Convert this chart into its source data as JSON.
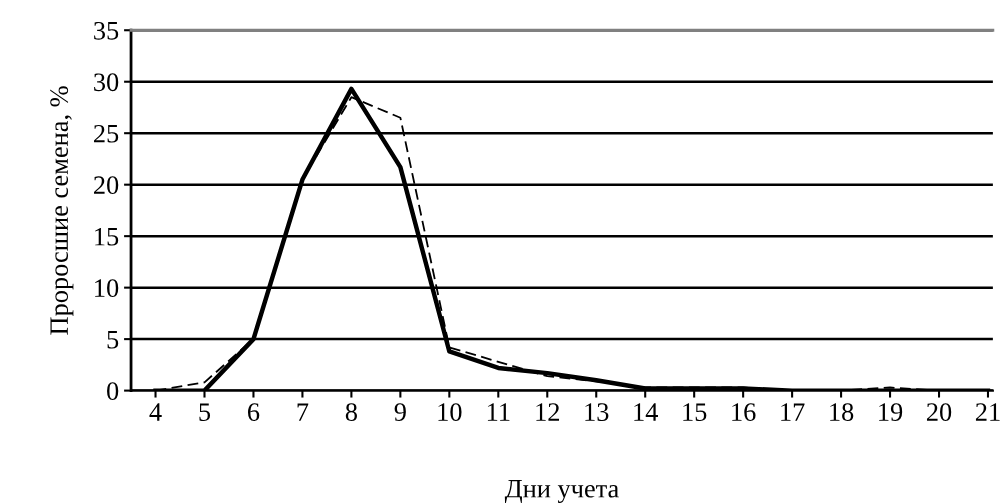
{
  "chart_data": {
    "type": "line",
    "xlabel": "Дни учета",
    "ylabel": "Проросшие семена, %",
    "categories": [
      "4",
      "5",
      "6",
      "7",
      "8",
      "9",
      "10",
      "11",
      "12",
      "13",
      "14",
      "15",
      "16",
      "17",
      "18",
      "19",
      "20",
      "21"
    ],
    "series": [
      {
        "color": "#000000",
        "line_style": "dashed",
        "values": [
          0,
          0.8,
          5,
          20.5,
          28.5,
          26.5,
          4.2,
          2.8,
          1.4,
          0.9,
          0.3,
          0.3,
          0.3,
          0,
          0,
          0.3,
          0,
          0
        ]
      },
      {
        "color": "#000000",
        "line_style": "solid",
        "values": [
          0,
          0,
          5,
          20.5,
          29.3,
          21.7,
          3.8,
          2.2,
          1.7,
          1.0,
          0.2,
          0.2,
          0.2,
          0,
          0,
          0,
          0,
          0
        ]
      }
    ],
    "ylim": [
      0,
      35
    ],
    "yticks": [
      0,
      5,
      10,
      15,
      20,
      25,
      30,
      35
    ],
    "grid": "y",
    "marker": "none"
  }
}
